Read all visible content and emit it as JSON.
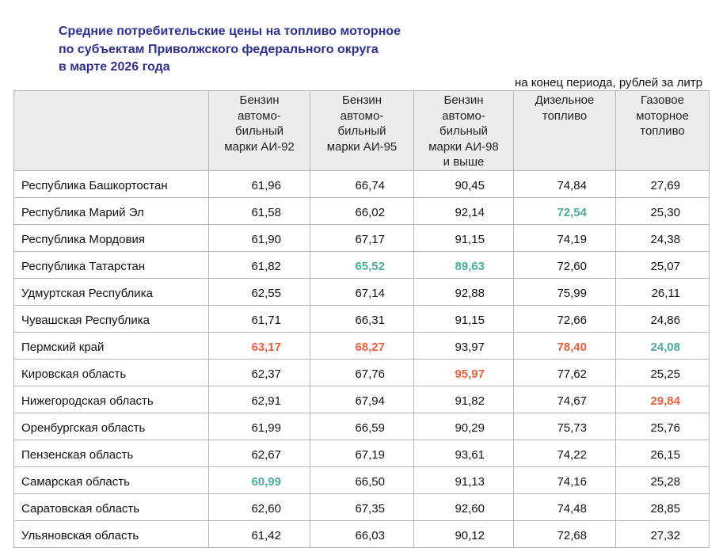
{
  "title_lines": [
    "Средние потребительские цены на топливо моторное",
    "по субъектам Приволжского федерального округа",
    "в марте 2026 года"
  ],
  "unit_note": "на конец периода, рублей за литр",
  "columns": [
    "",
    "Бензин автомо-бильный марки АИ-92",
    "Бензин автомо-бильный марки АИ-95",
    "Бензин автомо-бильный марки АИ-98 и выше",
    "Дизельное топливо",
    "Газовое моторное топливо"
  ],
  "header_lines": [
    [],
    [
      "Бензин",
      "автомо-",
      "бильный",
      "марки АИ-92"
    ],
    [
      "Бензин",
      "автомо-",
      "бильный",
      "марки АИ-95"
    ],
    [
      "Бензин",
      "автомо-",
      "бильный",
      "марки АИ-98",
      "и выше"
    ],
    [
      "Дизельное",
      "топливо"
    ],
    [
      "Газовое",
      "моторное",
      "топливо"
    ]
  ],
  "highlight_colors": {
    "max": "#e8603c",
    "min": "#4aab9c",
    "title": "#2e3192"
  },
  "rows": [
    {
      "region": "Республика Башкортостан",
      "values": [
        "61,96",
        "66,74",
        "90,45",
        "74,84",
        "27,69"
      ],
      "highlight": [
        "",
        "",
        "",
        "",
        ""
      ]
    },
    {
      "region": "Республика Марий Эл",
      "values": [
        "61,58",
        "66,02",
        "92,14",
        "72,54",
        "25,30"
      ],
      "highlight": [
        "",
        "",
        "",
        "min",
        ""
      ]
    },
    {
      "region": "Республика Мордовия",
      "values": [
        "61,90",
        "67,17",
        "91,15",
        "74,19",
        "24,38"
      ],
      "highlight": [
        "",
        "",
        "",
        "",
        ""
      ]
    },
    {
      "region": "Республика Татарстан",
      "values": [
        "61,82",
        "65,52",
        "89,63",
        "72,60",
        "25,07"
      ],
      "highlight": [
        "",
        "min",
        "min",
        "",
        ""
      ]
    },
    {
      "region": "Удмуртская Республика",
      "values": [
        "62,55",
        "67,14",
        "92,88",
        "75,99",
        "26,11"
      ],
      "highlight": [
        "",
        "",
        "",
        "",
        ""
      ]
    },
    {
      "region": "Чувашская Республика",
      "values": [
        "61,71",
        "66,31",
        "91,15",
        "72,66",
        "24,86"
      ],
      "highlight": [
        "",
        "",
        "",
        "",
        ""
      ]
    },
    {
      "region": "Пермский край",
      "values": [
        "63,17",
        "68,27",
        "93,97",
        "78,40",
        "24,08"
      ],
      "highlight": [
        "max",
        "max",
        "",
        "max",
        "min"
      ]
    },
    {
      "region": "Кировская область",
      "values": [
        "62,37",
        "67,76",
        "95,97",
        "77,62",
        "25,25"
      ],
      "highlight": [
        "",
        "",
        "max",
        "",
        ""
      ]
    },
    {
      "region": "Нижегородская область",
      "values": [
        "62,91",
        "67,94",
        "91,82",
        "74,67",
        "29,84"
      ],
      "highlight": [
        "",
        "",
        "",
        "",
        "max"
      ]
    },
    {
      "region": "Оренбургская область",
      "values": [
        "61,99",
        "66,59",
        "90,29",
        "75,73",
        "25,76"
      ],
      "highlight": [
        "",
        "",
        "",
        "",
        ""
      ]
    },
    {
      "region": "Пензенская область",
      "values": [
        "62,67",
        "67,19",
        "93,61",
        "74,22",
        "26,15"
      ],
      "highlight": [
        "",
        "",
        "",
        "",
        ""
      ]
    },
    {
      "region": "Самарская область",
      "values": [
        "60,99",
        "66,50",
        "91,13",
        "74,16",
        "25,28"
      ],
      "highlight": [
        "min",
        "",
        "",
        "",
        ""
      ]
    },
    {
      "region": "Саратовская область",
      "values": [
        "62,60",
        "67,35",
        "92,60",
        "74,48",
        "28,85"
      ],
      "highlight": [
        "",
        "",
        "",
        "",
        ""
      ]
    },
    {
      "region": "Ульяновская область",
      "values": [
        "61,42",
        "66,03",
        "90,12",
        "72,68",
        "27,32"
      ],
      "highlight": [
        "",
        "",
        "",
        "",
        ""
      ]
    }
  ]
}
